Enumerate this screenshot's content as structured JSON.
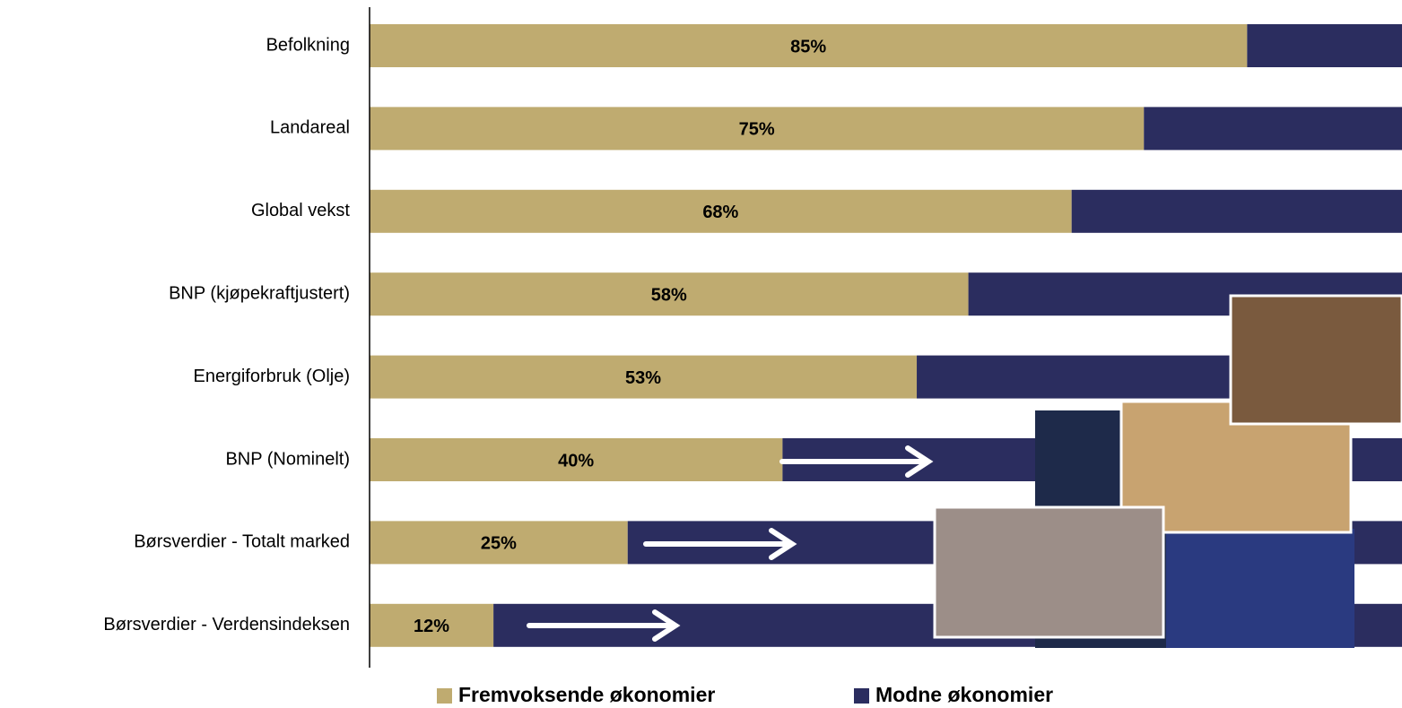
{
  "chart_data": {
    "type": "stacked-bar-horizontal",
    "categories": [
      "Befolkning",
      "Landareal",
      "Global vekst",
      "BNP (kjøpekraftjustert)",
      "Energiforbruk (Olje)",
      "BNP (Nominelt)",
      "Børsverdier - Totalt marked",
      "Børsverdier - Verdensindeksen"
    ],
    "series": [
      {
        "name": "Fremvoksende økonomier",
        "color": "#bfab70",
        "values": [
          85,
          75,
          68,
          58,
          53,
          40,
          25,
          12
        ],
        "value_labels": [
          "85%",
          "75%",
          "68%",
          "58%",
          "53%",
          "40%",
          "25%",
          "12%"
        ]
      },
      {
        "name": "Modne økonomier",
        "color": "#2b2d5f",
        "values": [
          15,
          25,
          32,
          42,
          47,
          60,
          75,
          88
        ]
      }
    ],
    "xlim": [
      0,
      100
    ],
    "legend": "bottom"
  }
}
